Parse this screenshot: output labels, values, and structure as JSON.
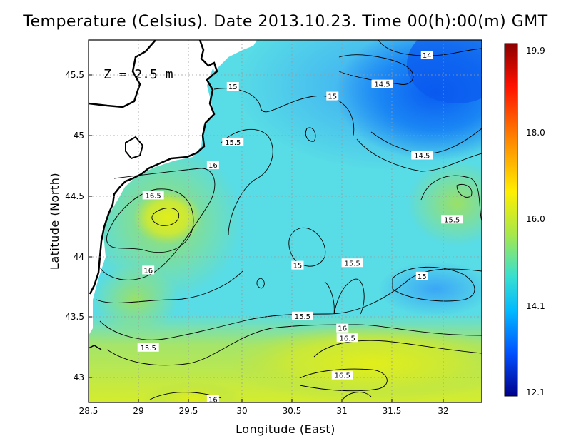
{
  "title": "Temperature (Celsius). Date 2013.10.23. Time 00(h):00(m)  GMT",
  "depth_label": "Z = 2.5 m",
  "xlabel": "Longitude (East)",
  "ylabel": "Latitude (North)",
  "x_ticks": [
    "28.5",
    "29",
    "29.5",
    "30",
    "30.5",
    "31",
    "31.5",
    "32"
  ],
  "y_ticks": [
    "43",
    "43.5",
    "44",
    "44.5",
    "45",
    "45.5"
  ],
  "colorbar": {
    "min": 12.1,
    "max": 19.9,
    "labels": [
      "19.9",
      "18.0",
      "16.0",
      "14.1",
      "12.1"
    ],
    "colors": [
      "#8b0000",
      "#ff2000",
      "#ff9a00",
      "#ffff00",
      "#a8e84a",
      "#38e0d0",
      "#00bfff",
      "#0060ff",
      "#00008b"
    ]
  },
  "chart_data": {
    "type": "heatmap",
    "xlim": [
      28.5,
      32.45
    ],
    "ylim": [
      42.8,
      45.8
    ],
    "contour_labels": [
      {
        "text": "14",
        "lon": 31.9,
        "lat": 45.67
      },
      {
        "text": "14.5",
        "lon": 31.45,
        "lat": 45.43
      },
      {
        "text": "14.5",
        "lon": 31.85,
        "lat": 44.84
      },
      {
        "text": "15",
        "lon": 29.95,
        "lat": 45.41
      },
      {
        "text": "15",
        "lon": 30.95,
        "lat": 45.33
      },
      {
        "text": "15",
        "lon": 30.6,
        "lat": 43.93
      },
      {
        "text": "15",
        "lon": 31.85,
        "lat": 43.84
      },
      {
        "text": "15.5",
        "lon": 29.95,
        "lat": 44.95
      },
      {
        "text": "15.5",
        "lon": 32.15,
        "lat": 44.31
      },
      {
        "text": "15.5",
        "lon": 31.15,
        "lat": 43.95
      },
      {
        "text": "15.5",
        "lon": 30.65,
        "lat": 43.51
      },
      {
        "text": "15.5",
        "lon": 29.1,
        "lat": 43.25
      },
      {
        "text": "16",
        "lon": 29.75,
        "lat": 44.76
      },
      {
        "text": "16",
        "lon": 29.1,
        "lat": 43.89
      },
      {
        "text": "16",
        "lon": 31.05,
        "lat": 43.41
      },
      {
        "text": "16",
        "lon": 29.75,
        "lat": 42.82
      },
      {
        "text": "16.5",
        "lon": 29.15,
        "lat": 44.51
      },
      {
        "text": "16.5",
        "lon": 31.1,
        "lat": 43.33
      },
      {
        "text": "16.5",
        "lon": 31.05,
        "lat": 43.02
      }
    ]
  }
}
